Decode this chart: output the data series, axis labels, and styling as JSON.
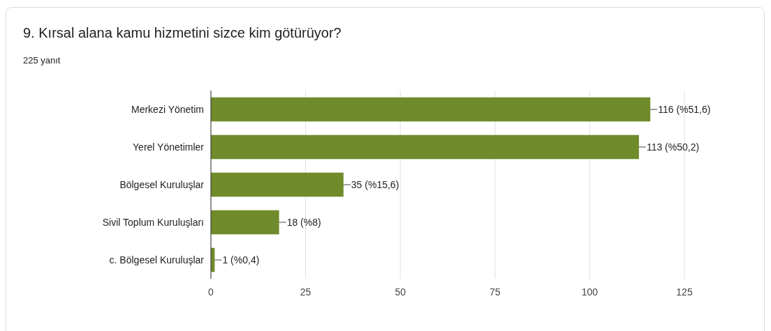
{
  "chart_data": {
    "type": "bar",
    "orientation": "horizontal",
    "title": "9. Kırsal alana kamu hizmetini sizce kim götürüyor?",
    "subtitle": "225 yanıt",
    "categories": [
      "Merkezi Yönetim",
      "Yerel Yönetimler",
      "Bölgesel Kuruluşlar",
      "Sivil Toplum Kuruluşları",
      "c. Bölgesel Kuruluşlar"
    ],
    "values": [
      116,
      113,
      35,
      18,
      1
    ],
    "value_labels": [
      "116 (%51,6)",
      "113 (%50,2)",
      "35 (%15,6)",
      "18 (%8)",
      "1 (%0,4)"
    ],
    "color": "#6f8b2b",
    "xlim": [
      0,
      125
    ],
    "xticks": [
      0,
      25,
      50,
      75,
      100,
      125
    ],
    "grid": "x"
  }
}
